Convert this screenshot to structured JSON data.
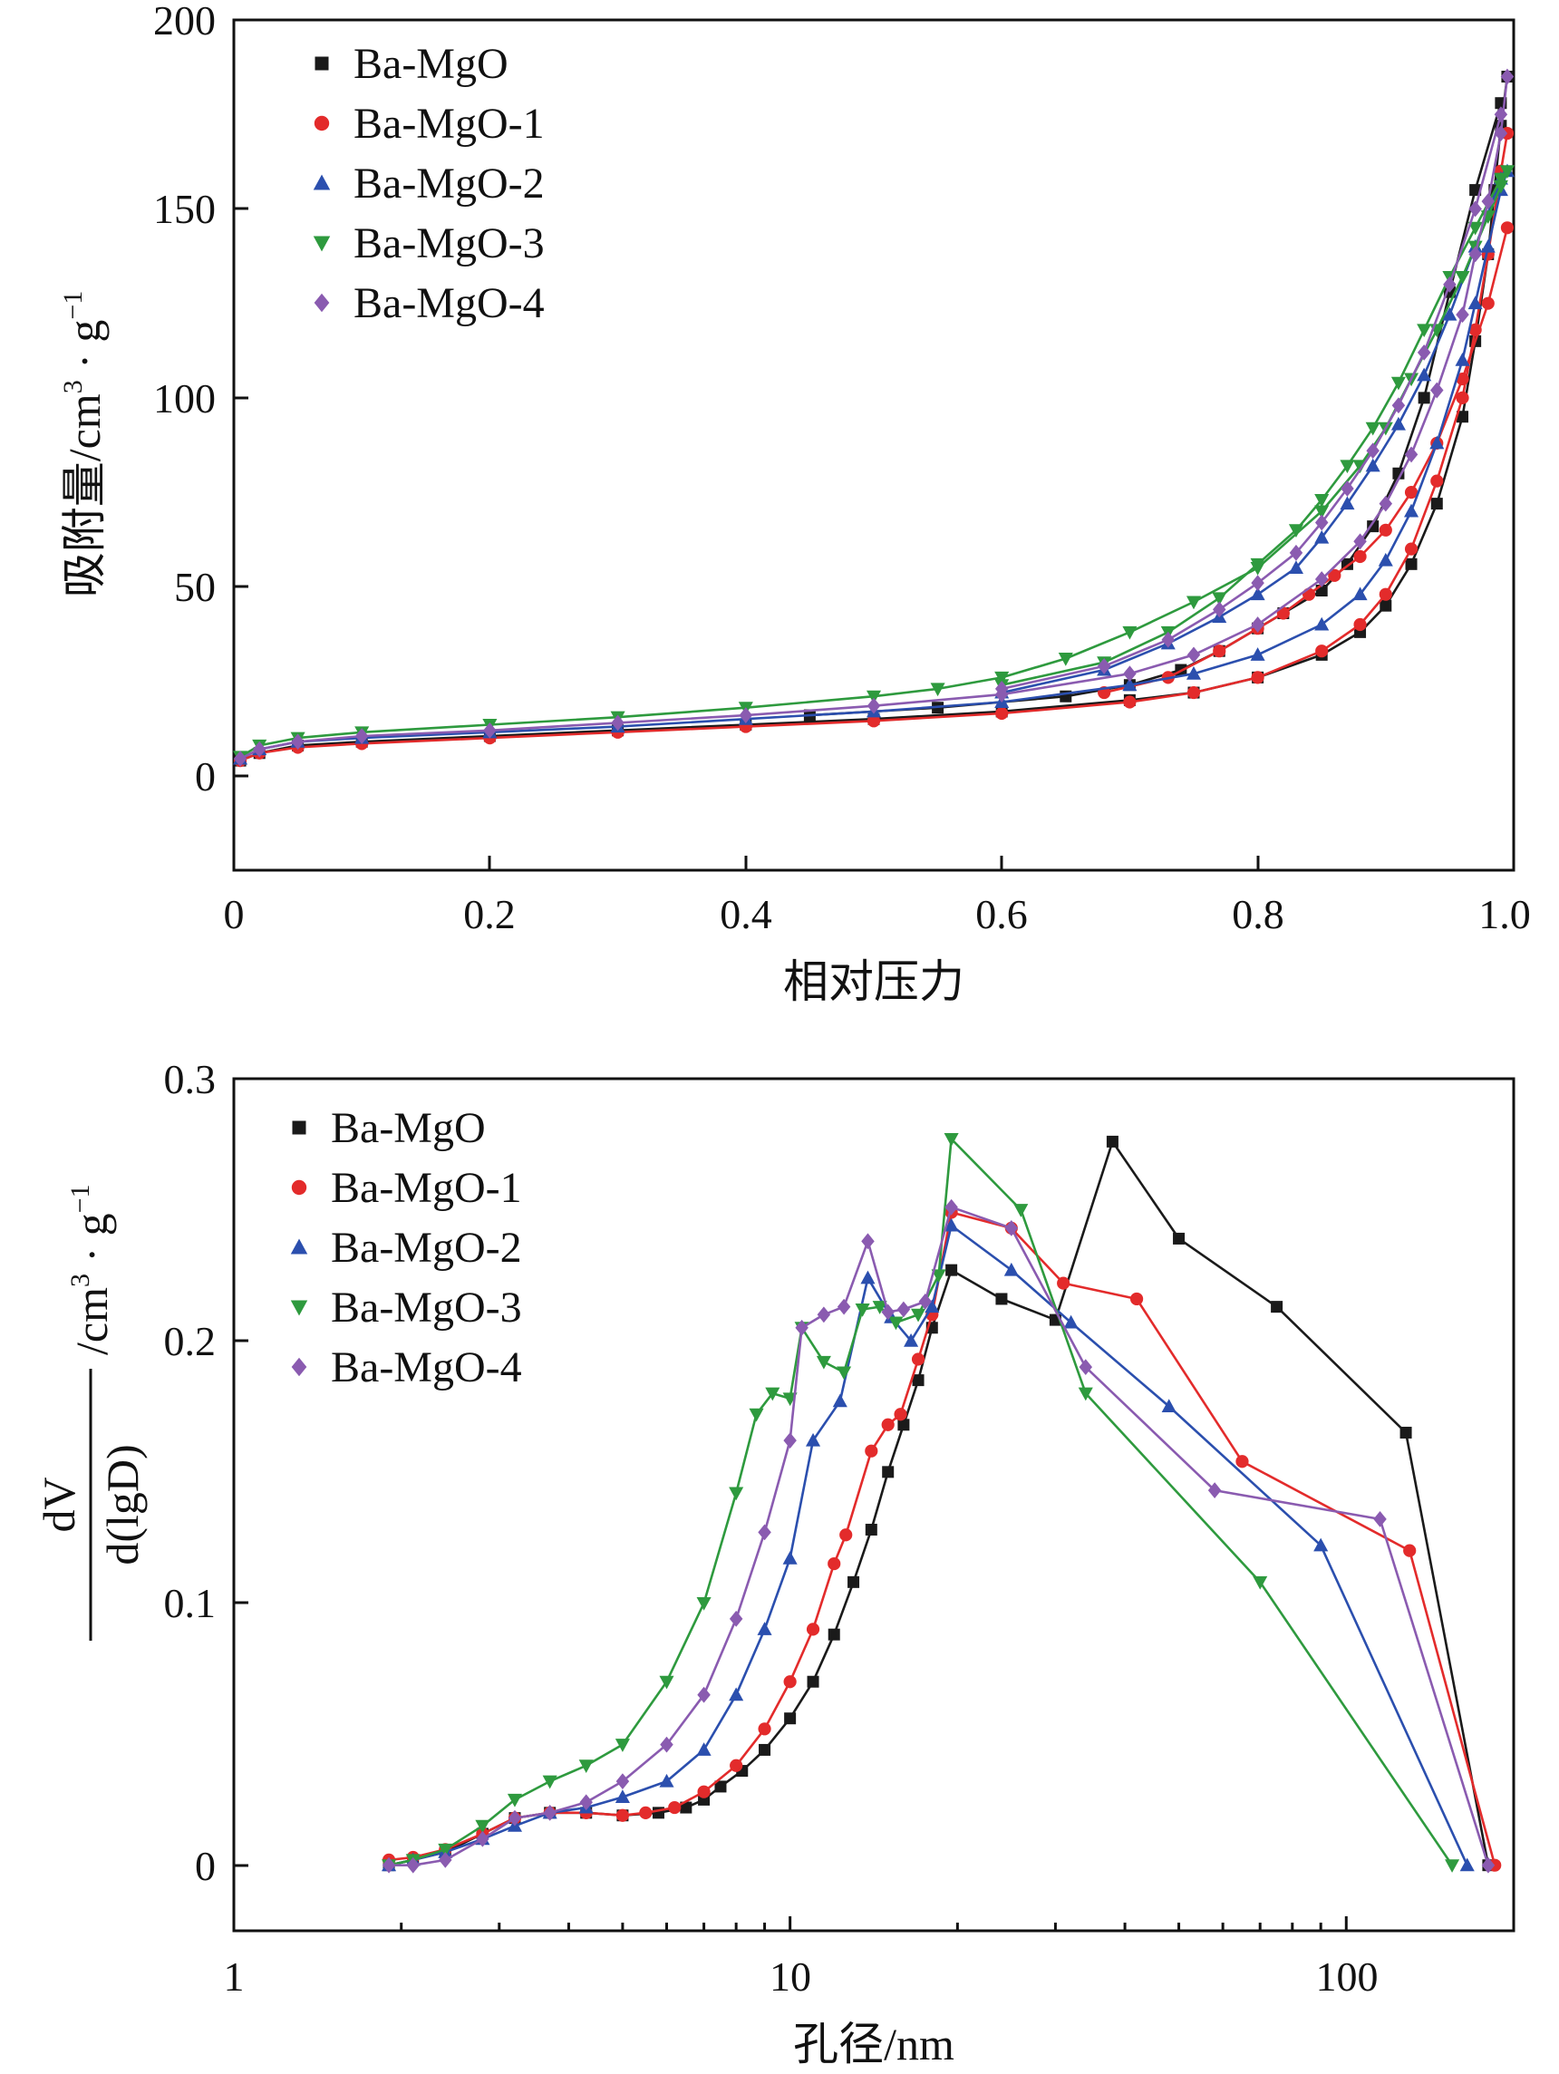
{
  "colors": {
    "Ba-MgO": "#1a1a1a",
    "Ba-MgO-1": "#e32b2b",
    "Ba-MgO-2": "#2b4fae",
    "Ba-MgO-3": "#2e9a3e",
    "Ba-MgO-4": "#8a5bb0"
  },
  "chart_data": [
    {
      "type": "line",
      "title": "",
      "xlabel": "相对压力",
      "ylabel_main": "吸附量/cm",
      "ylabel_sup1": "3",
      "ylabel_mid": " · g",
      "ylabel_sup2": "−1",
      "xlim": [
        0,
        1.0
      ],
      "ylim": [
        -25,
        200
      ],
      "xticks": [
        "0",
        "0.2",
        "0.4",
        "0.6",
        "0.8",
        "1.0"
      ],
      "yticks": [
        "0",
        "50",
        "100",
        "150",
        "200"
      ],
      "legend": [
        "Ba-MgO",
        "Ba-MgO-1",
        "Ba-MgO-2",
        "Ba-MgO-3",
        "Ba-MgO-4"
      ],
      "series": [
        {
          "name": "Ba-MgO",
          "marker": "square",
          "x": [
            0.005,
            0.02,
            0.05,
            0.1,
            0.2,
            0.3,
            0.4,
            0.5,
            0.6,
            0.7,
            0.75,
            0.8,
            0.85,
            0.88,
            0.9,
            0.92,
            0.94,
            0.96,
            0.97,
            0.98,
            0.985,
            0.99,
            0.995
          ],
          "y": [
            4,
            6,
            8,
            9,
            10.5,
            12,
            13.5,
            15,
            17,
            20,
            22,
            26,
            32,
            38,
            45,
            56,
            72,
            95,
            115,
            138,
            155,
            172,
            185
          ],
          "x_desorption": [
            0.99,
            0.97,
            0.95,
            0.93,
            0.91,
            0.89,
            0.87,
            0.85,
            0.82,
            0.8,
            0.77,
            0.74,
            0.7,
            0.65,
            0.55,
            0.45
          ],
          "y_desorption": [
            178,
            155,
            128,
            100,
            80,
            66,
            56,
            49,
            43,
            39,
            33,
            28,
            24,
            21,
            18,
            16
          ]
        },
        {
          "name": "Ba-MgO-1",
          "marker": "circle",
          "x": [
            0.005,
            0.02,
            0.05,
            0.1,
            0.2,
            0.3,
            0.4,
            0.5,
            0.6,
            0.7,
            0.75,
            0.8,
            0.85,
            0.88,
            0.9,
            0.92,
            0.94,
            0.96,
            0.97,
            0.98,
            0.99,
            0.995
          ],
          "y": [
            4,
            6,
            7.5,
            8.5,
            10,
            11.5,
            13,
            14.5,
            16.5,
            19.5,
            22,
            26,
            33,
            40,
            48,
            60,
            78,
            100,
            118,
            138,
            160,
            170
          ],
          "x_desorption": [
            0.995,
            0.98,
            0.96,
            0.94,
            0.92,
            0.9,
            0.88,
            0.86,
            0.84,
            0.82,
            0.8,
            0.77,
            0.73,
            0.68
          ],
          "y_desorption": [
            145,
            125,
            105,
            88,
            75,
            65,
            58,
            53,
            48,
            43,
            39,
            33,
            26,
            22
          ]
        },
        {
          "name": "Ba-MgO-2",
          "marker": "triangle-up",
          "x": [
            0.005,
            0.02,
            0.05,
            0.1,
            0.2,
            0.3,
            0.4,
            0.5,
            0.6,
            0.7,
            0.75,
            0.8,
            0.85,
            0.88,
            0.9,
            0.92,
            0.94,
            0.96,
            0.97,
            0.98,
            0.99,
            0.995
          ],
          "y": [
            4.5,
            7,
            9,
            10,
            11.5,
            13,
            15,
            17,
            19.5,
            24,
            27,
            32,
            40,
            48,
            57,
            70,
            88,
            110,
            125,
            140,
            155,
            160
          ],
          "x_desorption": [
            0.99,
            0.97,
            0.95,
            0.93,
            0.91,
            0.89,
            0.87,
            0.85,
            0.83,
            0.8,
            0.77,
            0.73,
            0.68,
            0.6
          ],
          "y_desorption": [
            158,
            140,
            122,
            106,
            93,
            82,
            72,
            63,
            55,
            48,
            42,
            35,
            28,
            22
          ]
        },
        {
          "name": "Ba-MgO-3",
          "marker": "triangle-down",
          "x": [
            0.005,
            0.02,
            0.05,
            0.1,
            0.2,
            0.3,
            0.4,
            0.5,
            0.55,
            0.6,
            0.65,
            0.7,
            0.75,
            0.8,
            0.85,
            0.88,
            0.9,
            0.92,
            0.94,
            0.96,
            0.97,
            0.98,
            0.99,
            0.995
          ],
          "y": [
            5,
            8,
            10,
            11.5,
            13.5,
            15.5,
            18,
            21,
            23,
            26,
            31,
            38,
            46,
            55,
            70,
            82,
            92,
            105,
            118,
            132,
            140,
            148,
            156,
            160
          ],
          "x_desorption": [
            0.99,
            0.97,
            0.95,
            0.93,
            0.91,
            0.89,
            0.87,
            0.85,
            0.83,
            0.8,
            0.77,
            0.73,
            0.68,
            0.6
          ],
          "y_desorption": [
            158,
            145,
            132,
            118,
            104,
            92,
            82,
            73,
            65,
            56,
            47,
            38,
            30,
            24
          ]
        },
        {
          "name": "Ba-MgO-4",
          "marker": "diamond",
          "x": [
            0.005,
            0.02,
            0.05,
            0.1,
            0.2,
            0.3,
            0.4,
            0.5,
            0.6,
            0.7,
            0.75,
            0.8,
            0.85,
            0.88,
            0.9,
            0.92,
            0.94,
            0.96,
            0.97,
            0.98,
            0.99,
            0.995
          ],
          "y": [
            4.5,
            7,
            9,
            10.5,
            12,
            14,
            16,
            18.5,
            21.5,
            27,
            32,
            40,
            52,
            62,
            72,
            85,
            102,
            122,
            138,
            152,
            170,
            185
          ],
          "x_desorption": [
            0.99,
            0.97,
            0.95,
            0.93,
            0.91,
            0.89,
            0.87,
            0.85,
            0.83,
            0.8,
            0.77,
            0.73,
            0.68,
            0.6
          ],
          "y_desorption": [
            175,
            150,
            130,
            112,
            98,
            86,
            76,
            67,
            59,
            51,
            44,
            36,
            29,
            23
          ]
        }
      ]
    },
    {
      "type": "line",
      "title": "",
      "xlabel": "孔径/nm",
      "xscale": "log",
      "ylabel_frac_top": "dV",
      "ylabel_frac_bottom": "d(lgD)",
      "ylabel_unit_main": "/cm",
      "ylabel_unit_sup1": "3",
      "ylabel_unit_mid": " · g",
      "ylabel_unit_sup2": "−1",
      "xlim": [
        1,
        200
      ],
      "ylim": [
        -0.025,
        0.3
      ],
      "xticks": [
        "1",
        "10",
        "100"
      ],
      "yticks": [
        "0",
        "0.1",
        "0.2",
        "0.3"
      ],
      "legend": [
        "Ba-MgO",
        "Ba-MgO-1",
        "Ba-MgO-2",
        "Ba-MgO-3",
        "Ba-MgO-4"
      ],
      "series": [
        {
          "name": "Ba-MgO",
          "marker": "square",
          "x": [
            1.9,
            2.1,
            2.4,
            2.8,
            3.2,
            3.7,
            4.3,
            5.0,
            5.8,
            6.5,
            7.0,
            7.5,
            8.2,
            9.0,
            10.0,
            11.0,
            12.0,
            13.0,
            14.0,
            15.0,
            16.0,
            17.0,
            18.0,
            19.5,
            24.0,
            30.0,
            38.0,
            50.0,
            75.0,
            128.0,
            180.0
          ],
          "y": [
            0.0,
            0.002,
            0.005,
            0.012,
            0.018,
            0.02,
            0.02,
            0.019,
            0.02,
            0.022,
            0.025,
            0.03,
            0.036,
            0.044,
            0.056,
            0.07,
            0.088,
            0.108,
            0.128,
            0.15,
            0.168,
            0.185,
            0.205,
            0.227,
            0.216,
            0.208,
            0.276,
            0.239,
            0.213,
            0.165,
            0.0
          ]
        },
        {
          "name": "Ba-MgO-1",
          "marker": "circle",
          "x": [
            1.9,
            2.1,
            2.4,
            2.8,
            3.2,
            3.7,
            4.3,
            5.0,
            5.5,
            6.2,
            7.0,
            8.0,
            9.0,
            10.0,
            11.0,
            12.0,
            12.6,
            14.0,
            15.0,
            15.8,
            17.0,
            18.0,
            19.5,
            25.0,
            31.0,
            42.0,
            65.0,
            130.0,
            185.0
          ],
          "y": [
            0.002,
            0.003,
            0.006,
            0.012,
            0.018,
            0.02,
            0.02,
            0.019,
            0.02,
            0.022,
            0.028,
            0.038,
            0.052,
            0.07,
            0.09,
            0.115,
            0.126,
            0.158,
            0.168,
            0.172,
            0.193,
            0.21,
            0.249,
            0.243,
            0.222,
            0.216,
            0.154,
            0.12,
            0.0
          ]
        },
        {
          "name": "Ba-MgO-2",
          "marker": "triangle-up",
          "x": [
            1.9,
            2.1,
            2.4,
            2.8,
            3.2,
            3.7,
            4.3,
            5.0,
            6.0,
            7.0,
            8.0,
            9.0,
            10.0,
            11.0,
            12.3,
            13.8,
            15.2,
            16.5,
            18.0,
            19.5,
            25.0,
            32.0,
            48.0,
            90.0,
            165.0
          ],
          "y": [
            0.0,
            0.002,
            0.005,
            0.01,
            0.015,
            0.02,
            0.022,
            0.026,
            0.032,
            0.044,
            0.065,
            0.09,
            0.117,
            0.162,
            0.177,
            0.224,
            0.209,
            0.2,
            0.213,
            0.244,
            0.227,
            0.207,
            0.175,
            0.122,
            0.0
          ]
        },
        {
          "name": "Ba-MgO-3",
          "marker": "triangle-down",
          "x": [
            1.9,
            2.1,
            2.4,
            2.8,
            3.2,
            3.7,
            4.3,
            5.0,
            6.0,
            7.0,
            8.0,
            8.7,
            9.3,
            10.0,
            10.5,
            11.5,
            12.5,
            13.5,
            14.5,
            15.5,
            17.0,
            18.5,
            19.5,
            26.0,
            34.0,
            70.0,
            155.0
          ],
          "y": [
            0.0,
            0.002,
            0.006,
            0.015,
            0.025,
            0.032,
            0.038,
            0.046,
            0.07,
            0.1,
            0.142,
            0.172,
            0.18,
            0.178,
            0.205,
            0.192,
            0.188,
            0.212,
            0.213,
            0.207,
            0.21,
            0.225,
            0.277,
            0.25,
            0.18,
            0.108,
            0.0
          ]
        },
        {
          "name": "Ba-MgO-4",
          "marker": "diamond",
          "x": [
            1.9,
            2.1,
            2.4,
            2.8,
            3.2,
            3.7,
            4.3,
            5.0,
            6.0,
            7.0,
            8.0,
            9.0,
            10.0,
            10.5,
            11.5,
            12.5,
            13.8,
            15.0,
            16.0,
            17.5,
            19.5,
            25.0,
            34.0,
            58.0,
            115.0,
            180.0
          ],
          "y": [
            0.0,
            0.0,
            0.002,
            0.01,
            0.018,
            0.02,
            0.024,
            0.032,
            0.046,
            0.065,
            0.094,
            0.127,
            0.162,
            0.205,
            0.21,
            0.213,
            0.238,
            0.211,
            0.212,
            0.215,
            0.251,
            0.243,
            0.19,
            0.143,
            0.132,
            0.0
          ]
        }
      ]
    }
  ]
}
